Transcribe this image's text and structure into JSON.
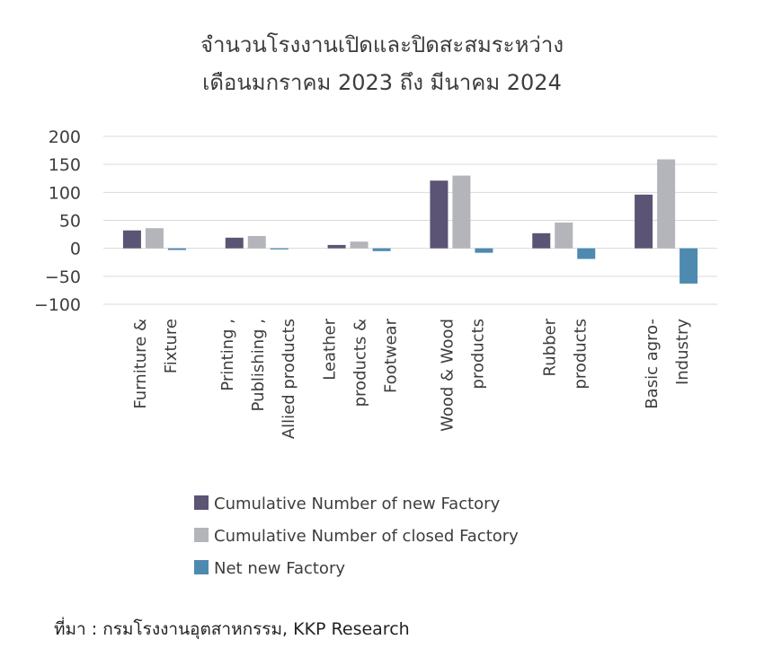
{
  "chart_data": {
    "type": "bar",
    "title": [
      "จำนวนโรงงานเปิดและปิดสะสมระหว่าง",
      "เดือนมกราคม 2023 ถึง มีนาคม 2024"
    ],
    "categories": [
      [
        "Furniture &",
        "Fixture"
      ],
      [
        "Printing ,",
        "Publishing ,",
        "Allied products"
      ],
      [
        "Leather",
        "products &",
        "Footwear"
      ],
      [
        "Wood & Wood",
        "products"
      ],
      [
        "Rubber",
        "products"
      ],
      [
        "Basic agro-",
        "Industry"
      ]
    ],
    "series": [
      {
        "name": "Cumulative Number of new Factory",
        "color": "#5b5474",
        "values": [
          32,
          19,
          6,
          121,
          27,
          96
        ]
      },
      {
        "name": "Cumulative Number of closed Factory",
        "color": "#b4b4bb",
        "values": [
          36,
          22,
          12,
          130,
          46,
          159
        ]
      },
      {
        "name": "Net new Factory",
        "color": "#4e8ab0",
        "values": [
          -3,
          -2,
          -5,
          -8,
          -19,
          -63
        ]
      }
    ],
    "ylim": [
      -100,
      200
    ],
    "yticks": [
      200,
      150,
      100,
      50,
      0,
      -50,
      -100
    ],
    "grid": true,
    "legend": "bottom"
  },
  "source": "ที่มา : กรมโรงงานอุตสาหกรรม, KKP Research"
}
